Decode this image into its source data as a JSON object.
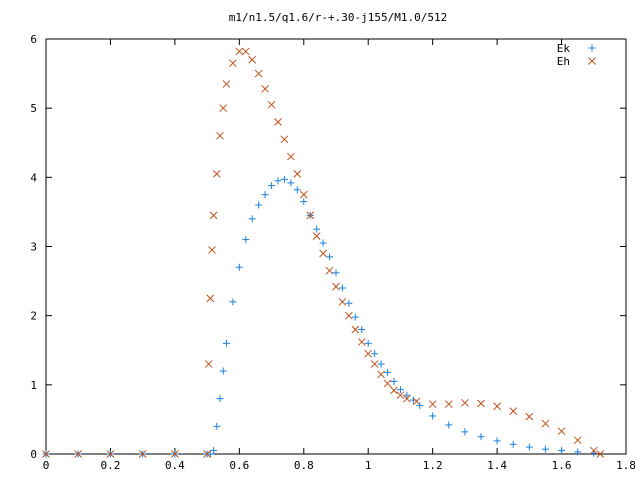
{
  "chart_data": {
    "type": "scatter",
    "title": "m1/n1.5/q1.6/r-+.30-j155/M1.0/512",
    "xlabel": "",
    "ylabel": "",
    "xlim": [
      0,
      1.8
    ],
    "ylim": [
      0,
      6
    ],
    "x_ticks": [
      "0",
      "0.2",
      "0.4",
      "0.6",
      "0.8",
      "1",
      "1.2",
      "1.4",
      "1.6",
      "1.8"
    ],
    "y_ticks": [
      "0",
      "1",
      "2",
      "3",
      "4",
      "5",
      "6"
    ],
    "grid": false,
    "legend_position": "top-right",
    "series": [
      {
        "name": "Ek",
        "marker": "plus",
        "color": "#1a82e0",
        "points": [
          [
            0.0,
            0
          ],
          [
            0.1,
            0
          ],
          [
            0.2,
            0
          ],
          [
            0.3,
            0
          ],
          [
            0.4,
            0
          ],
          [
            0.5,
            0
          ],
          [
            0.51,
            0
          ],
          [
            0.52,
            0.05
          ],
          [
            0.53,
            0.4
          ],
          [
            0.54,
            0.8
          ],
          [
            0.55,
            1.2
          ],
          [
            0.56,
            1.6
          ],
          [
            0.58,
            2.2
          ],
          [
            0.6,
            2.7
          ],
          [
            0.62,
            3.1
          ],
          [
            0.64,
            3.4
          ],
          [
            0.66,
            3.6
          ],
          [
            0.68,
            3.75
          ],
          [
            0.7,
            3.88
          ],
          [
            0.72,
            3.95
          ],
          [
            0.74,
            3.97
          ],
          [
            0.76,
            3.92
          ],
          [
            0.78,
            3.82
          ],
          [
            0.8,
            3.65
          ],
          [
            0.82,
            3.45
          ],
          [
            0.84,
            3.25
          ],
          [
            0.86,
            3.05
          ],
          [
            0.88,
            2.85
          ],
          [
            0.9,
            2.62
          ],
          [
            0.92,
            2.4
          ],
          [
            0.94,
            2.18
          ],
          [
            0.96,
            1.98
          ],
          [
            0.98,
            1.8
          ],
          [
            1.0,
            1.6
          ],
          [
            1.02,
            1.45
          ],
          [
            1.04,
            1.3
          ],
          [
            1.06,
            1.18
          ],
          [
            1.08,
            1.05
          ],
          [
            1.1,
            0.93
          ],
          [
            1.12,
            0.85
          ],
          [
            1.14,
            0.78
          ],
          [
            1.16,
            0.7
          ],
          [
            1.2,
            0.55
          ],
          [
            1.25,
            0.42
          ],
          [
            1.3,
            0.32
          ],
          [
            1.35,
            0.25
          ],
          [
            1.4,
            0.19
          ],
          [
            1.45,
            0.14
          ],
          [
            1.5,
            0.1
          ],
          [
            1.55,
            0.07
          ],
          [
            1.6,
            0.05
          ],
          [
            1.65,
            0.03
          ],
          [
            1.7,
            0.01
          ]
        ]
      },
      {
        "name": "Eh",
        "marker": "cross",
        "color": "#c0501a",
        "points": [
          [
            0.0,
            0
          ],
          [
            0.1,
            0
          ],
          [
            0.2,
            0
          ],
          [
            0.3,
            0
          ],
          [
            0.4,
            0
          ],
          [
            0.5,
            0
          ],
          [
            0.505,
            1.3
          ],
          [
            0.51,
            2.25
          ],
          [
            0.515,
            2.95
          ],
          [
            0.52,
            3.45
          ],
          [
            0.53,
            4.05
          ],
          [
            0.54,
            4.6
          ],
          [
            0.55,
            5.0
          ],
          [
            0.56,
            5.35
          ],
          [
            0.58,
            5.65
          ],
          [
            0.6,
            5.82
          ],
          [
            0.62,
            5.82
          ],
          [
            0.64,
            5.7
          ],
          [
            0.66,
            5.5
          ],
          [
            0.68,
            5.28
          ],
          [
            0.7,
            5.05
          ],
          [
            0.72,
            4.8
          ],
          [
            0.74,
            4.55
          ],
          [
            0.76,
            4.3
          ],
          [
            0.78,
            4.05
          ],
          [
            0.8,
            3.75
          ],
          [
            0.82,
            3.45
          ],
          [
            0.84,
            3.15
          ],
          [
            0.86,
            2.9
          ],
          [
            0.88,
            2.65
          ],
          [
            0.9,
            2.42
          ],
          [
            0.92,
            2.2
          ],
          [
            0.94,
            2.0
          ],
          [
            0.96,
            1.8
          ],
          [
            0.98,
            1.62
          ],
          [
            1.0,
            1.45
          ],
          [
            1.02,
            1.3
          ],
          [
            1.04,
            1.15
          ],
          [
            1.06,
            1.02
          ],
          [
            1.08,
            0.92
          ],
          [
            1.1,
            0.85
          ],
          [
            1.12,
            0.8
          ],
          [
            1.15,
            0.76
          ],
          [
            1.2,
            0.72
          ],
          [
            1.25,
            0.72
          ],
          [
            1.3,
            0.74
          ],
          [
            1.35,
            0.73
          ],
          [
            1.4,
            0.69
          ],
          [
            1.45,
            0.62
          ],
          [
            1.5,
            0.54
          ],
          [
            1.55,
            0.44
          ],
          [
            1.6,
            0.33
          ],
          [
            1.65,
            0.2
          ],
          [
            1.7,
            0.05
          ],
          [
            1.72,
            0.0
          ]
        ]
      }
    ]
  }
}
